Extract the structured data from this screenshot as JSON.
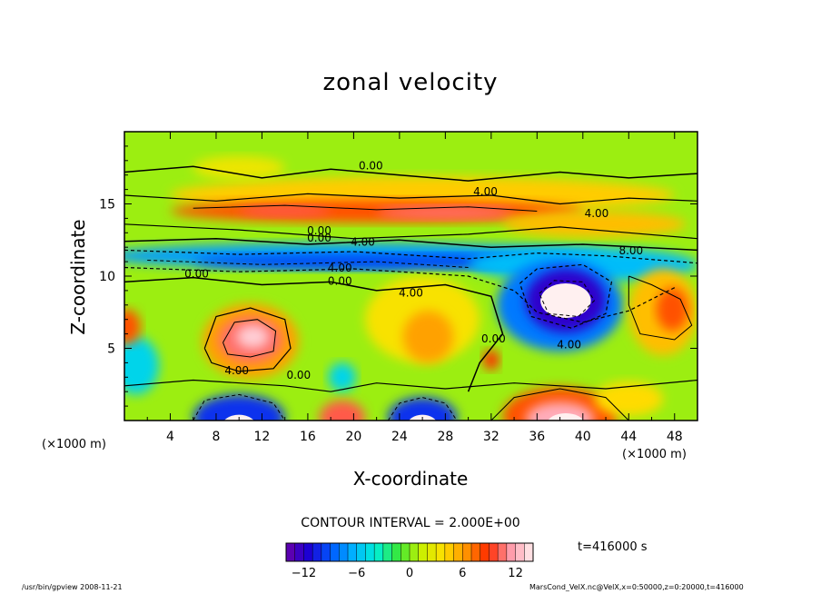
{
  "chart_data": {
    "type": "heatmap",
    "title": "zonal velocity",
    "xlabel": "X-coordinate",
    "ylabel": "Z-coordinate",
    "x_unit": "(×1000 m)",
    "y_unit": "(×1000 m)",
    "xlim": [
      0,
      50
    ],
    "ylim": [
      0,
      20
    ],
    "x_ticks": [
      4,
      8,
      12,
      16,
      20,
      24,
      28,
      32,
      36,
      40,
      44,
      48
    ],
    "y_ticks": [
      5,
      10,
      15
    ],
    "contour_interval": "CONTOUR INTERVAL = 2.000E+00",
    "contour_labels": [
      {
        "text": "0.00",
        "x": 21.5,
        "y": 17.4
      },
      {
        "text": "4.00",
        "x": 31.5,
        "y": 15.6
      },
      {
        "text": "4.00",
        "x": 41.2,
        "y": 14.1
      },
      {
        "text": "0.00",
        "x": 17.0,
        "y": 12.9
      },
      {
        "text": "0.00",
        "x": 17.0,
        "y": 12.4
      },
      {
        "text": "4.00",
        "x": 20.8,
        "y": 12.1
      },
      {
        "text": "8.00",
        "x": 44.2,
        "y": 11.5
      },
      {
        "text": "4.00",
        "x": 18.8,
        "y": 10.3
      },
      {
        "text": "0.00",
        "x": 6.3,
        "y": 9.9
      },
      {
        "text": "0.00",
        "x": 18.8,
        "y": 9.4
      },
      {
        "text": "4.00",
        "x": 25.0,
        "y": 8.6
      },
      {
        "text": "0.00",
        "x": 32.2,
        "y": 5.4
      },
      {
        "text": "4.00",
        "x": 38.8,
        "y": 5.0
      },
      {
        "text": "4.00",
        "x": 9.8,
        "y": 3.2
      },
      {
        "text": "0.00",
        "x": 15.2,
        "y": 2.9
      }
    ],
    "colorbar": {
      "min": -14,
      "max": 14,
      "ticks": [
        -12,
        -6,
        0,
        6,
        12
      ],
      "tick_labels": [
        "−12",
        "−6",
        "0",
        "6",
        "12"
      ],
      "levels": 28,
      "palette": [
        "#6a00a8",
        "#1c00d4",
        "#0058ff",
        "#00b4ff",
        "#00f0d8",
        "#38e838",
        "#c8f000",
        "#ffe000",
        "#ff9600",
        "#ff2a00",
        "#ff9aaa",
        "#fff0f0"
      ]
    },
    "time": "t=416000 s"
  },
  "footer": {
    "left": "/usr/bin/gpview  2008-11-21",
    "right": "MarsCond_VelX.nc@VelX,x=0:50000,z=0:20000,t=416000"
  }
}
